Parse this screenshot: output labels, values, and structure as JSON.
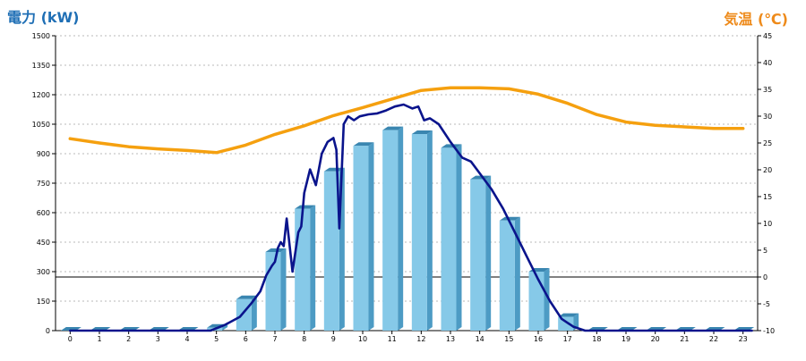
{
  "chart_data": {
    "type": "bar",
    "title_left": "電力 (kW)",
    "title_right": "気温 (℃)",
    "categories": [
      "0",
      "1",
      "2",
      "3",
      "4",
      "5",
      "6",
      "7",
      "8",
      "9",
      "10",
      "11",
      "12",
      "13",
      "14",
      "15",
      "16",
      "17",
      "18",
      "19",
      "20",
      "21",
      "22",
      "23"
    ],
    "y_left": {
      "ylim": [
        0,
        1500
      ],
      "ticks": [
        "0",
        "150",
        "300",
        "450",
        "600",
        "750",
        "900",
        "1050",
        "1200",
        "1350",
        "1500"
      ]
    },
    "y_right": {
      "ylim": [
        -10,
        45
      ],
      "ticks": [
        "-10",
        "-5",
        "0",
        "5",
        "10",
        "15",
        "20",
        "25",
        "30",
        "35",
        "40",
        "45"
      ]
    },
    "reference_line_right": 0,
    "grid": true,
    "series": [
      {
        "kind": "bar",
        "axis": "left",
        "values": [
          0,
          0,
          0,
          0,
          0,
          15,
          160,
          400,
          620,
          810,
          940,
          1020,
          1000,
          930,
          770,
          560,
          300,
          70,
          0,
          0,
          0,
          0,
          0,
          0
        ],
        "color": "#86c9e8"
      },
      {
        "kind": "line",
        "axis": "left",
        "x": [
          0,
          3,
          4.8,
          5.3,
          5.8,
          6.2,
          6.5,
          6.7,
          6.9,
          7.0,
          7.1,
          7.2,
          7.3,
          7.4,
          7.6,
          7.8,
          7.9,
          8.0,
          8.2,
          8.4,
          8.6,
          8.8,
          9.0,
          9.1,
          9.15,
          9.2,
          9.35,
          9.5,
          9.7,
          9.9,
          10.2,
          10.5,
          10.8,
          11.1,
          11.4,
          11.7,
          11.9,
          12.1,
          12.3,
          12.6,
          13.0,
          13.4,
          13.7,
          14.0,
          14.4,
          14.8,
          15.2,
          15.6,
          16.0,
          16.4,
          16.8,
          17.2,
          17.6,
          18.0,
          23.3
        ],
        "values": [
          0,
          0,
          0,
          30,
          70,
          140,
          200,
          280,
          330,
          350,
          420,
          450,
          430,
          570,
          300,
          500,
          530,
          700,
          820,
          740,
          900,
          960,
          980,
          920,
          730,
          520,
          1050,
          1090,
          1070,
          1090,
          1100,
          1105,
          1120,
          1140,
          1150,
          1130,
          1140,
          1070,
          1080,
          1050,
          960,
          880,
          860,
          800,
          720,
          620,
          500,
          380,
          260,
          150,
          60,
          20,
          0,
          0,
          0
        ],
        "color": "#0a148c"
      },
      {
        "kind": "line",
        "axis": "right",
        "x": [
          0,
          1,
          2,
          3,
          4,
          5,
          6,
          7,
          8,
          9,
          10,
          11,
          12,
          13,
          14,
          15,
          16,
          17,
          18,
          19,
          20,
          21,
          22,
          23
        ],
        "values": [
          25.8,
          25.0,
          24.3,
          23.9,
          23.6,
          23.2,
          24.6,
          26.6,
          28.2,
          30.1,
          31.6,
          33.2,
          34.8,
          35.3,
          35.3,
          35.1,
          34.1,
          32.4,
          30.3,
          28.9,
          28.3,
          28.0,
          27.7,
          27.7
        ],
        "color": "#f5a00f"
      }
    ]
  }
}
